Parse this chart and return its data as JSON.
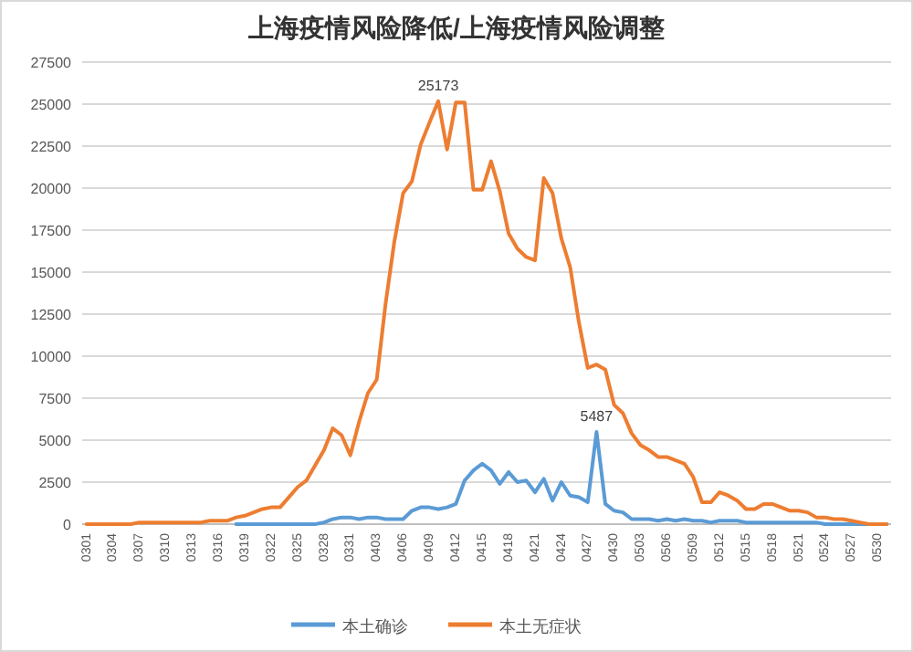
{
  "chart_data": {
    "type": "line",
    "title": "上海疫情风险降低/上海疫情风险调整",
    "categories": [
      "0301",
      null,
      null,
      "0304",
      null,
      null,
      "0307",
      null,
      null,
      "0310",
      null,
      null,
      "0313",
      null,
      null,
      "0316",
      null,
      null,
      "0319",
      null,
      null,
      "0322",
      null,
      null,
      "0325",
      null,
      null,
      "0328",
      null,
      null,
      "0331",
      null,
      null,
      "0403",
      null,
      null,
      "0406",
      null,
      null,
      "0409",
      null,
      null,
      "0412",
      null,
      null,
      "0415",
      null,
      null,
      "0418",
      null,
      null,
      "0421",
      null,
      null,
      "0424",
      null,
      null,
      "0427",
      null,
      null,
      "0430",
      null,
      null,
      "0503",
      null,
      null,
      "0506",
      null,
      null,
      "0509",
      null,
      null,
      "0512",
      null,
      null,
      "0515",
      null,
      null,
      "0518",
      null,
      null,
      "0521",
      null,
      null,
      "0524",
      null,
      null,
      "0527",
      null,
      null,
      "0530",
      null
    ],
    "series": [
      {
        "name": "本土确诊",
        "color": "#5b9bd5",
        "values": [
          null,
          null,
          null,
          null,
          null,
          null,
          null,
          null,
          null,
          null,
          null,
          null,
          null,
          null,
          null,
          null,
          null,
          0,
          0,
          0,
          0,
          0,
          0,
          0,
          0,
          0,
          0,
          100,
          300,
          400,
          400,
          300,
          400,
          400,
          300,
          300,
          300,
          800,
          1000,
          1000,
          900,
          1000,
          1200,
          2600,
          3200,
          3600,
          3200,
          2400,
          3100,
          2500,
          2600,
          1900,
          2700,
          1400,
          2500,
          1700,
          1600,
          1300,
          5487,
          1200,
          800,
          700,
          300,
          300,
          300,
          200,
          300,
          200,
          300,
          200,
          200,
          100,
          200,
          200,
          200,
          100,
          100,
          100,
          100,
          100,
          100,
          100,
          100,
          100,
          0,
          0,
          0,
          0,
          0,
          0,
          0,
          0
        ],
        "value_labels": [
          null,
          null,
          null,
          null,
          null,
          null,
          null,
          null,
          null,
          null,
          null,
          null,
          null,
          null,
          null,
          null,
          null,
          null,
          null,
          null,
          null,
          null,
          null,
          null,
          null,
          null,
          null,
          null,
          null,
          null,
          null,
          null,
          null,
          null,
          null,
          null,
          null,
          null,
          null,
          null,
          null,
          null,
          null,
          null,
          null,
          null,
          null,
          null,
          null,
          null,
          null,
          null,
          null,
          null,
          null,
          null,
          null,
          null,
          "5487",
          null,
          null,
          null,
          null,
          null,
          null,
          null,
          null,
          null,
          null,
          null,
          null,
          null,
          null,
          null,
          null,
          null,
          null,
          null,
          null,
          null,
          null,
          null,
          null,
          null,
          null,
          null,
          null,
          null,
          null,
          null,
          null,
          null
        ]
      },
      {
        "name": "本土无症状",
        "color": "#ed7d31",
        "values": [
          0,
          0,
          0,
          0,
          0,
          0,
          100,
          100,
          100,
          100,
          100,
          100,
          100,
          100,
          200,
          200,
          200,
          400,
          500,
          700,
          900,
          1000,
          1000,
          1600,
          2200,
          2600,
          3500,
          4400,
          5700,
          5300,
          4100,
          6100,
          7800,
          8600,
          13100,
          16800,
          19700,
          20400,
          22600,
          23900,
          25173,
          22300,
          25100,
          25100,
          19900,
          19900,
          21600,
          19800,
          17300,
          16400,
          15900,
          15700,
          20600,
          19700,
          17000,
          15300,
          12000,
          9300,
          9500,
          9200,
          7100,
          6600,
          5400,
          4700,
          4400,
          4000,
          4000,
          3800,
          3600,
          2800,
          1300,
          1300,
          1900,
          1700,
          1400,
          900,
          900,
          1200,
          1200,
          1000,
          800,
          800,
          700,
          400,
          400,
          300,
          300,
          200,
          100,
          0,
          0,
          0
        ],
        "value_labels": [
          null,
          null,
          null,
          null,
          null,
          null,
          null,
          null,
          null,
          null,
          null,
          null,
          null,
          null,
          null,
          null,
          null,
          null,
          null,
          null,
          null,
          null,
          null,
          null,
          null,
          null,
          null,
          null,
          null,
          null,
          null,
          null,
          null,
          null,
          null,
          null,
          null,
          null,
          null,
          null,
          "25173",
          null,
          null,
          null,
          null,
          null,
          null,
          null,
          null,
          null,
          null,
          null,
          null,
          null,
          null,
          null,
          null,
          null,
          null,
          null,
          null,
          null,
          null,
          null,
          null,
          null,
          null,
          null,
          null,
          null,
          null,
          null,
          null,
          null,
          null,
          null,
          null,
          null,
          null,
          null,
          null,
          null,
          null,
          null,
          null,
          null,
          null,
          null,
          null,
          null,
          null,
          null
        ]
      }
    ],
    "ylim": [
      0,
      27500
    ],
    "yticks": [
      0,
      2500,
      5000,
      7500,
      10000,
      12500,
      15000,
      17500,
      20000,
      22500,
      25000,
      27500
    ],
    "grid": "y",
    "legend": "bottom",
    "marker": "none",
    "line_style": "solid"
  }
}
